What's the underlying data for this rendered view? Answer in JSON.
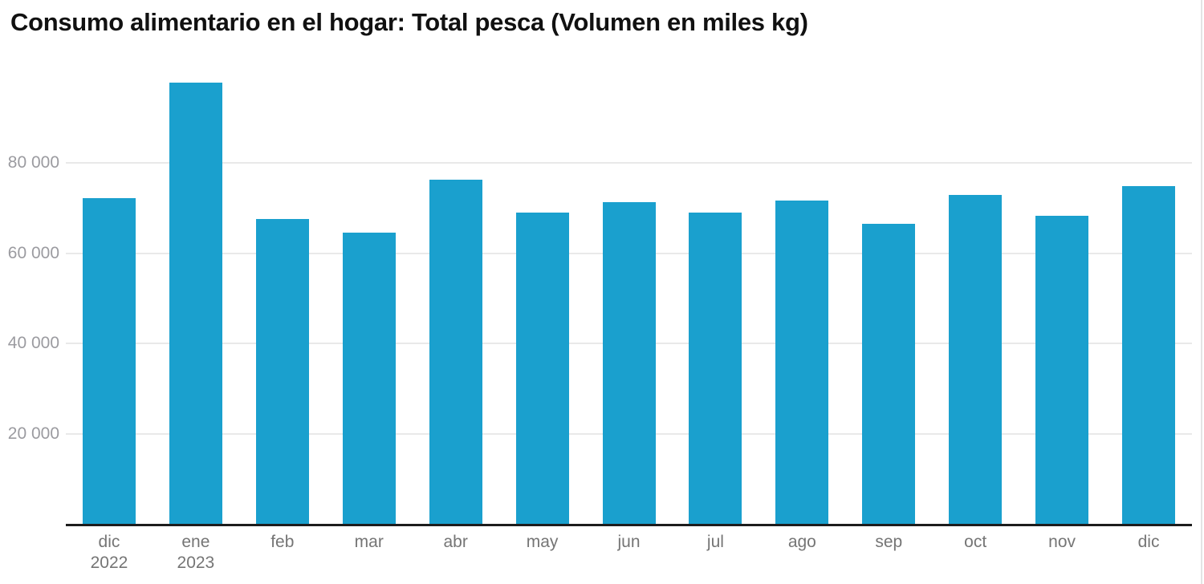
{
  "title": "Consumo alimentario en el hogar: Total pesca (Volumen en miles kg)",
  "colors": {
    "bar": "#1aa0ce",
    "axis_line": "#1d1d1d",
    "gridline": "#e9e9e9",
    "y_label": "#9b9ba0",
    "x_label": "#757575",
    "title": "#111111",
    "right_edge": "#e4e4e4",
    "background": "#ffffff"
  },
  "chart_data": {
    "type": "bar",
    "title": "Consumo alimentario en el hogar: Total pesca (Volumen en miles kg)",
    "unit": "miles kg",
    "xlabel": "",
    "ylabel": "",
    "ylim": [
      0,
      102800
    ],
    "grid": "horizontal",
    "legend": "none",
    "categories": [
      {
        "month": "dic",
        "year": "2022"
      },
      {
        "month": "ene",
        "year": "2023"
      },
      {
        "month": "feb",
        "year": ""
      },
      {
        "month": "mar",
        "year": ""
      },
      {
        "month": "abr",
        "year": ""
      },
      {
        "month": "may",
        "year": ""
      },
      {
        "month": "jun",
        "year": ""
      },
      {
        "month": "jul",
        "year": ""
      },
      {
        "month": "ago",
        "year": ""
      },
      {
        "month": "sep",
        "year": ""
      },
      {
        "month": "oct",
        "year": ""
      },
      {
        "month": "nov",
        "year": ""
      },
      {
        "month": "dic",
        "year": ""
      }
    ],
    "values": [
      72200,
      97800,
      67600,
      64500,
      76300,
      69000,
      71300,
      69000,
      71600,
      66500,
      72900,
      68300,
      74900
    ],
    "y_ticks": [
      {
        "value": 20000,
        "label": "20 000"
      },
      {
        "value": 40000,
        "label": "40 000"
      },
      {
        "value": 60000,
        "label": "60 000"
      },
      {
        "value": 80000,
        "label": "80 000"
      }
    ]
  }
}
